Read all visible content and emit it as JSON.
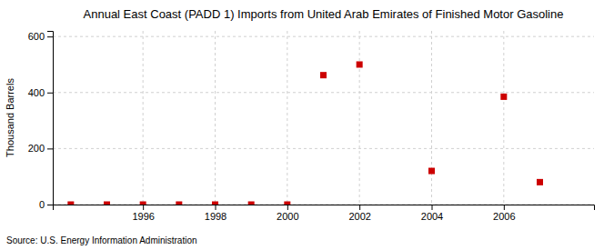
{
  "chart_data": {
    "type": "scatter",
    "title": "Annual East Coast (PADD 1) Imports from United Arab Emirates of Finished Motor Gasoline",
    "ylabel": "Thousand Barrels",
    "source": "Source: U.S. Energy Information Administration",
    "x": [
      1994,
      1995,
      1996,
      1997,
      1998,
      1999,
      2000,
      2001,
      2002,
      2004,
      2006,
      2007
    ],
    "values": [
      0,
      0,
      0,
      0,
      0,
      0,
      0,
      462,
      500,
      120,
      385,
      80
    ],
    "color": "#cc0000",
    "marker": "square",
    "xlim": [
      1993.5,
      2008.5
    ],
    "ylim": [
      0,
      620
    ],
    "xticks": [
      1996,
      1998,
      2000,
      2002,
      2004,
      2006
    ],
    "yticks": [
      0,
      200,
      400,
      600
    ],
    "grid": true
  }
}
